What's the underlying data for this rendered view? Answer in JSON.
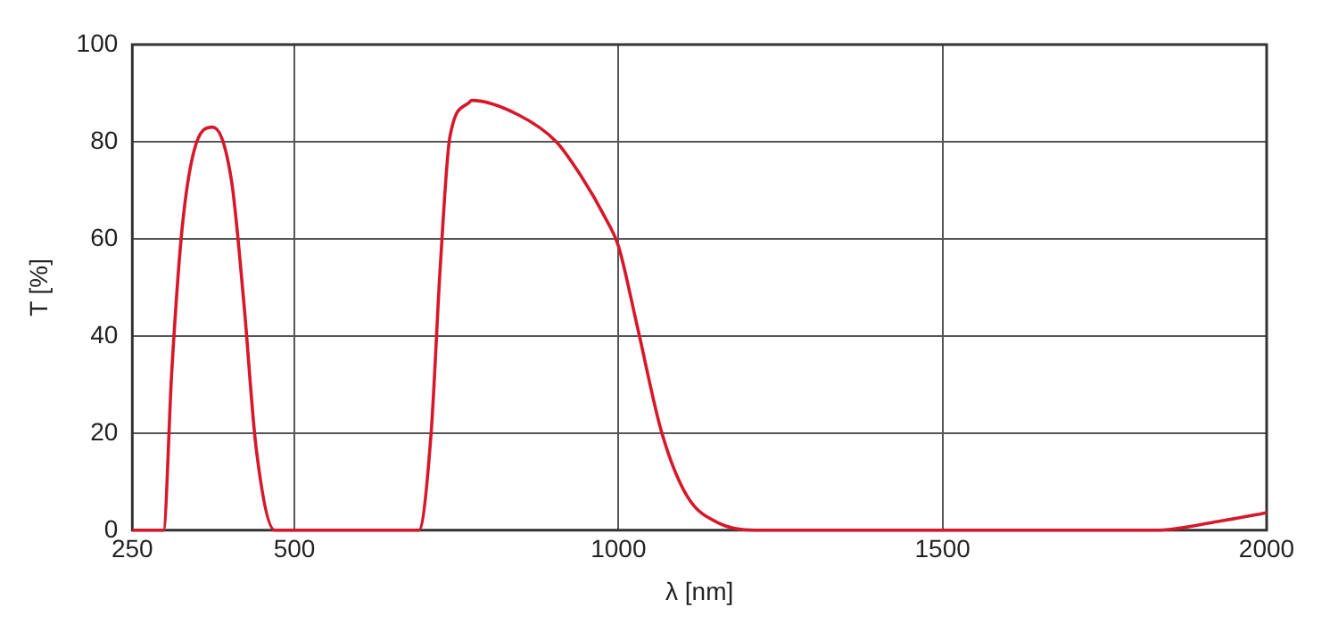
{
  "chart_data": {
    "type": "line",
    "xlabel": "λ [nm]",
    "ylabel": "T [%]",
    "xlim": [
      250,
      2000
    ],
    "ylim": [
      0,
      100
    ],
    "xticks": [
      250,
      500,
      1000,
      1500,
      2000
    ],
    "yticks": [
      0,
      20,
      40,
      60,
      80,
      100
    ],
    "grid": true,
    "marker": "none",
    "line_style": "solid",
    "series": [
      {
        "color": "#d7182a",
        "x": [
          250,
          298,
          311,
          326,
          345,
          374,
          403,
          422,
          441,
          470,
          692,
          711,
          725,
          740,
          769,
          774,
          846,
          904,
          942,
          981,
          1000,
          1029,
          1067,
          1106,
          1154,
          1211,
          1500,
          1828,
          1925,
          2000
        ],
        "values": [
          0,
          0,
          33,
          61,
          78,
          83,
          72,
          47,
          17,
          0,
          0,
          20,
          54,
          81,
          88,
          88.5,
          85.5,
          80,
          73,
          64,
          58.5,
          42,
          20,
          7,
          1.5,
          0,
          0,
          0,
          1.8,
          3.6
        ]
      }
    ]
  }
}
